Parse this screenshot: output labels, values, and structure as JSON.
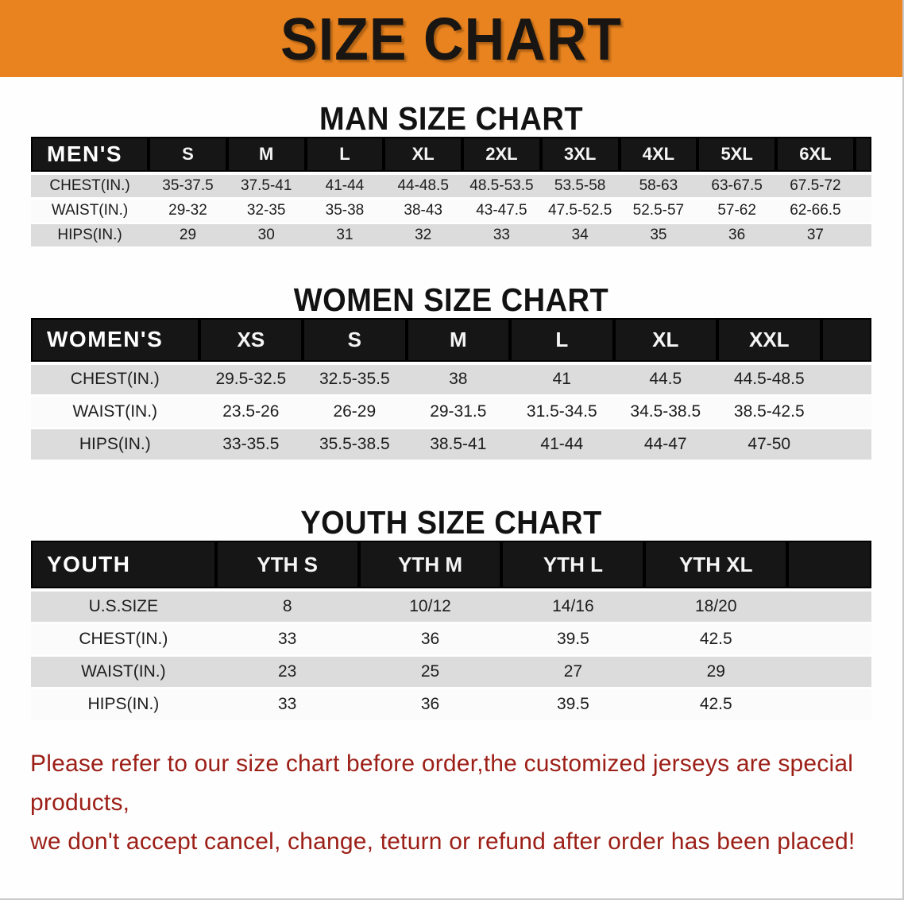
{
  "banner": {
    "title": "SIZE CHART",
    "bg_color": "#E8831F",
    "text_color": "#181512"
  },
  "sections": [
    {
      "heading": "MAN SIZE CHART",
      "table": {
        "header": [
          "MEN'S",
          "S",
          "M",
          "L",
          "XL",
          "2XL",
          "3XL",
          "4XL",
          "5XL",
          "6XL"
        ],
        "rows": [
          [
            "CHEST(IN.)",
            "35-37.5",
            "37.5-41",
            "41-44",
            "44-48.5",
            "48.5-53.5",
            "53.5-58",
            "58-63",
            "63-67.5",
            "67.5-72"
          ],
          [
            "WAIST(IN.)",
            "29-32",
            "32-35",
            "35-38",
            "38-43",
            "43-47.5",
            "47.5-52.5",
            "52.5-57",
            "57-62",
            "62-66.5"
          ],
          [
            "HIPS(IN.)",
            "29",
            "30",
            "31",
            "32",
            "33",
            "34",
            "35",
            "36",
            "37"
          ]
        ]
      }
    },
    {
      "heading": "WOMEN SIZE CHART",
      "table": {
        "header": [
          "WOMEN'S",
          "XS",
          "S",
          "M",
          "L",
          "XL",
          "XXL"
        ],
        "rows": [
          [
            "CHEST(IN.)",
            "29.5-32.5",
            "32.5-35.5",
            "38",
            "41",
            "44.5",
            "44.5-48.5"
          ],
          [
            "WAIST(IN.)",
            "23.5-26",
            "26-29",
            "29-31.5",
            "31.5-34.5",
            "34.5-38.5",
            "38.5-42.5"
          ],
          [
            "HIPS(IN.)",
            "33-35.5",
            "35.5-38.5",
            "38.5-41",
            "41-44",
            "44-47",
            "47-50"
          ]
        ]
      }
    },
    {
      "heading": "YOUTH SIZE CHART",
      "table": {
        "header": [
          "YOUTH",
          "YTH S",
          "YTH M",
          "YTH L",
          "YTH XL"
        ],
        "rows": [
          [
            "U.S.SIZE",
            "8",
            "10/12",
            "14/16",
            "18/20"
          ],
          [
            "CHEST(IN.)",
            "33",
            "36",
            "39.5",
            "42.5"
          ],
          [
            "WAIST(IN.)",
            "23",
            "25",
            "27",
            "29"
          ],
          [
            "HIPS(IN.)",
            "33",
            "36",
            "39.5",
            "42.5"
          ]
        ]
      }
    }
  ],
  "disclaimer": {
    "line1": "Please refer to our size chart before order,the customized jerseys are special products,",
    "line2": "we don't accept cancel, change, teturn or refund after order has been placed!",
    "color": "#9C1F17"
  },
  "table_colors": {
    "header_bg": "#161616",
    "header_text": "#F5F5F5",
    "row_shaded": "#DCDCDC",
    "row_plain": "#FBFBFB"
  }
}
